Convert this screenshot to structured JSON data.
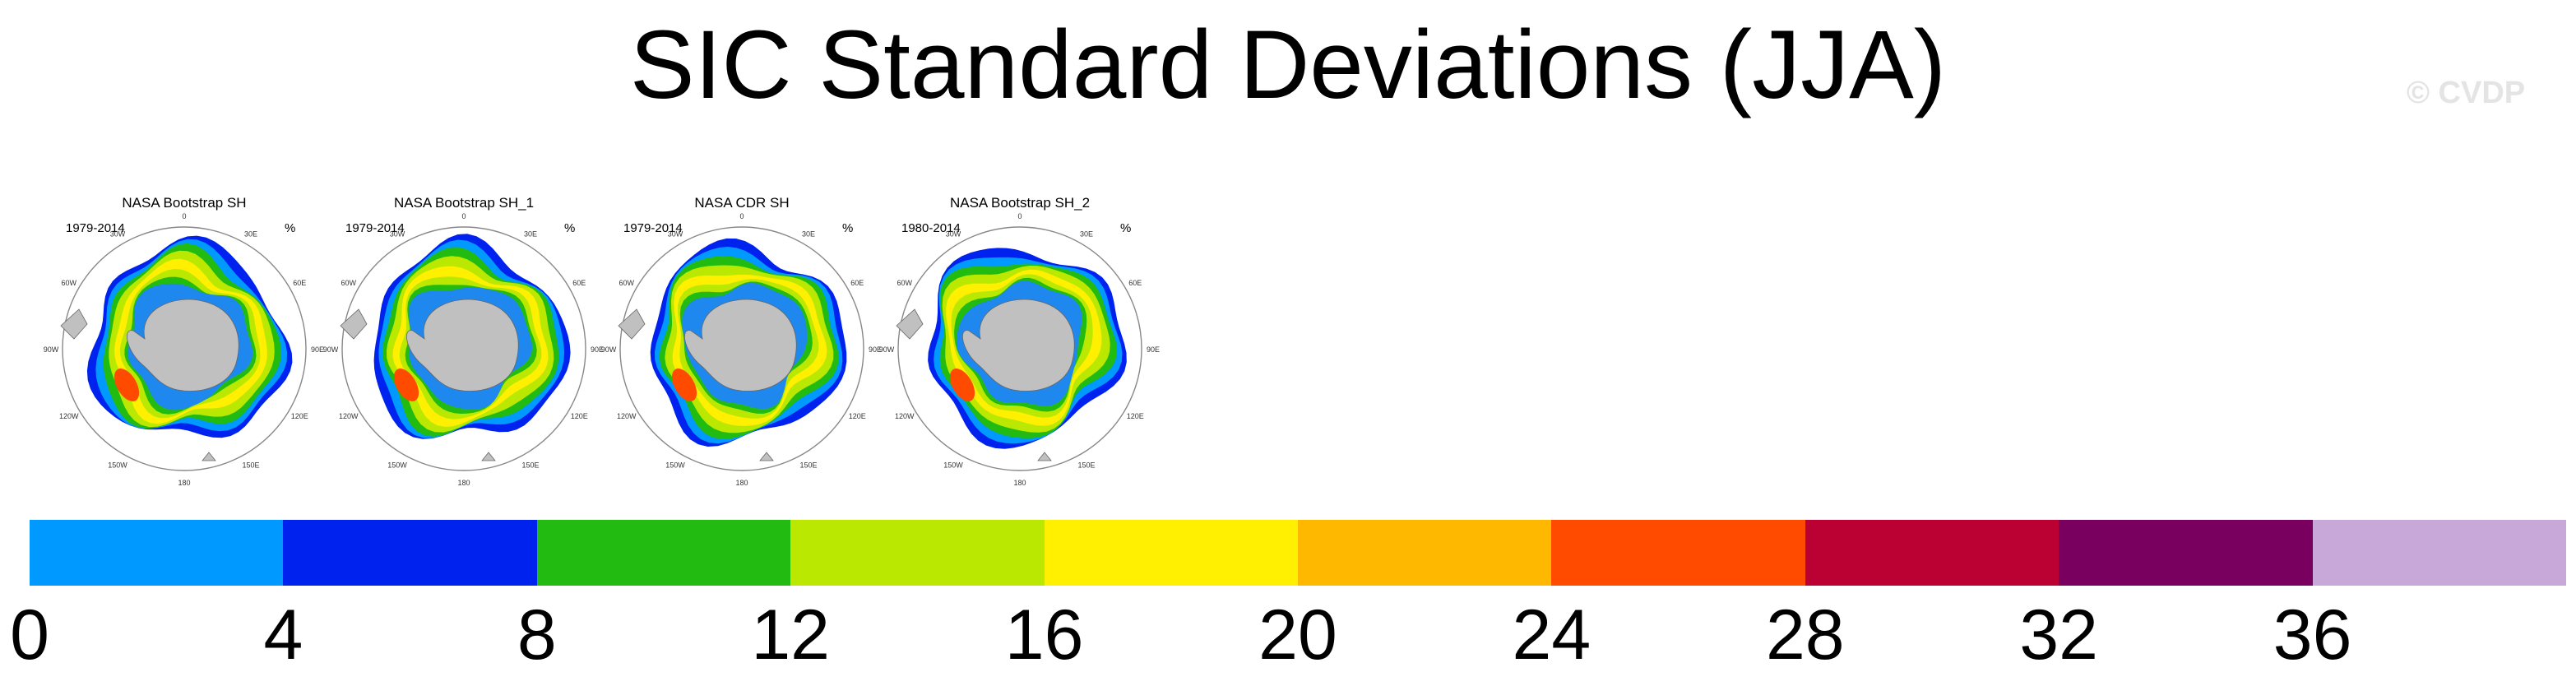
{
  "title": "SIC Standard Deviations (JJA)",
  "watermark": "© CVDP",
  "units": "%",
  "panels": [
    {
      "name": "NASA Bootstrap SH",
      "years": "1979-2014"
    },
    {
      "name": "NASA Bootstrap SH_1",
      "years": "1979-2014"
    },
    {
      "name": "NASA CDR SH",
      "years": "1979-2014"
    },
    {
      "name": "NASA Bootstrap SH_2",
      "years": "1980-2014"
    }
  ],
  "lon_labels": [
    "0",
    "30E",
    "60E",
    "90E",
    "120E",
    "150E",
    "180",
    "150W",
    "120W",
    "90W",
    "60W",
    "30W"
  ],
  "colorbar": {
    "labels": [
      "0",
      "4",
      "8",
      "12",
      "16",
      "20",
      "24",
      "28",
      "32",
      "36"
    ],
    "colors": [
      "#0099ff",
      "#0022ee",
      "#22bb11",
      "#bbe800",
      "#ffef00",
      "#ffb800",
      "#ff4b00",
      "#bb0033",
      "#7a0060",
      "#c8a8d8"
    ]
  },
  "map_colors": {
    "ocean": "#ffffff",
    "land": "#c0c0c0",
    "shelf_ice": "#1f88ee"
  }
}
